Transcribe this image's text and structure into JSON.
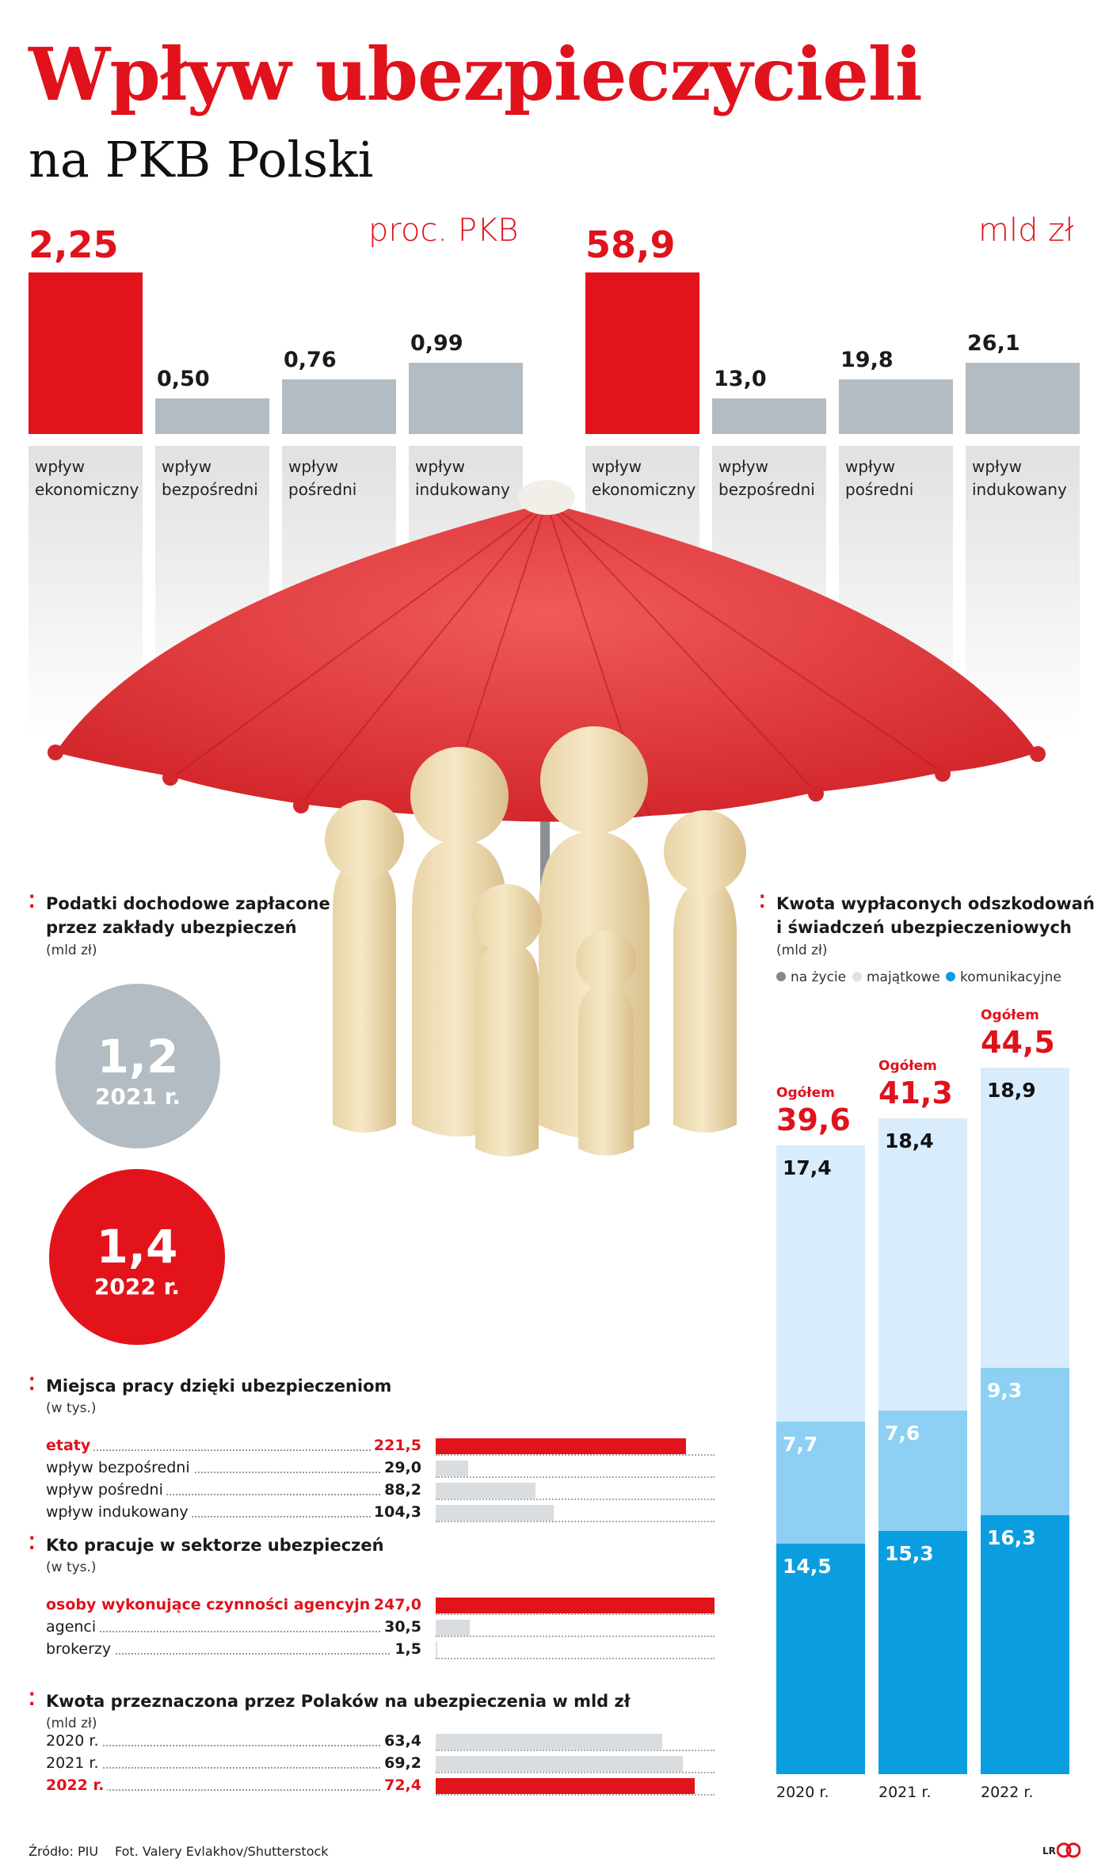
{
  "title": "Wpływ ubezpieczycieli",
  "subtitle": "na PKB Polski",
  "chart_data": [
    {
      "type": "bar",
      "title": "proc. PKB",
      "unit": "proc. PKB",
      "categories": [
        "wpływ\nekonomiczny",
        "wpływ\nbezpośredni",
        "wpływ\npośredni",
        "wpływ\nindukowany"
      ],
      "values": [
        2.25,
        0.5,
        0.76,
        0.99
      ],
      "labels": [
        "2,25",
        "0,50",
        "0,76",
        "0,99"
      ],
      "colors": [
        "#e3131b",
        "#b3bcc3",
        "#b3bcc3",
        "#b3bcc3"
      ]
    },
    {
      "type": "bar",
      "title": "mld zł",
      "unit": "mld zł",
      "categories": [
        "wpływ\nekonomiczny",
        "wpływ\nbezpośredni",
        "wpływ\npośredni",
        "wpływ\nindukowany"
      ],
      "values": [
        58.9,
        13.0,
        19.8,
        26.1
      ],
      "labels": [
        "58,9",
        "13,0",
        "19,8",
        "26,1"
      ],
      "colors": [
        "#e3131b",
        "#b3bcc3",
        "#b3bcc3",
        "#b3bcc3"
      ]
    },
    {
      "type": "bar",
      "title": "Podatki dochodowe zapłacone\nprzez zakłady ubezpieczeń",
      "subtitle": "(mld zł)",
      "items": [
        {
          "value": 1.2,
          "label": "1,2",
          "year": "2021 r.",
          "color": "#b3bcc3"
        },
        {
          "value": 1.4,
          "label": "1,4",
          "year": "2022 r.",
          "color": "#e3131b"
        }
      ]
    },
    {
      "type": "bar",
      "title": "Miejsca pracy dzięki ubezpieczeniom",
      "subtitle": "(w tys.)",
      "max": 247.0,
      "rows": [
        {
          "label": "etaty",
          "value": 221.5,
          "text": "221,5",
          "highlight": true
        },
        {
          "label": "wpływ bezpośredni",
          "value": 29.0,
          "text": "29,0",
          "highlight": false
        },
        {
          "label": "wpływ pośredni",
          "value": 88.2,
          "text": "88,2",
          "highlight": false
        },
        {
          "label": "wpływ indukowany",
          "value": 104.3,
          "text": "104,3",
          "highlight": false
        }
      ]
    },
    {
      "type": "bar",
      "title": "Kto pracuje w sektorze ubezpieczeń",
      "subtitle": "(w tys.)",
      "max": 247.0,
      "rows": [
        {
          "label": "osoby wykonujące czynności agencyjne",
          "value": 247.0,
          "text": "247,0",
          "highlight": true
        },
        {
          "label": "agenci",
          "value": 30.5,
          "text": "30,5",
          "highlight": false
        },
        {
          "label": "brokerzy",
          "value": 1.5,
          "text": "1,5",
          "highlight": false
        }
      ]
    },
    {
      "type": "bar",
      "title": "Kwota przeznaczona przez Polaków na ubezpieczenia w mld zł",
      "subtitle": "(mld zł)",
      "max": 78.0,
      "rows": [
        {
          "label": "2020 r.",
          "value": 63.4,
          "text": "63,4",
          "highlight": false
        },
        {
          "label": "2021 r.",
          "value": 69.2,
          "text": "69,2",
          "highlight": false
        },
        {
          "label": "2022 r.",
          "value": 72.4,
          "text": "72,4",
          "highlight": true
        }
      ]
    },
    {
      "type": "bar",
      "stacked": true,
      "title": "Kwota wypłaconych odszkodowań\ni świadczeń ubezpieczeniowych",
      "subtitle": "(mld zł)",
      "categories": [
        "2020 r.",
        "2021 r.",
        "2022 r."
      ],
      "total_label": "Ogółem",
      "totals": [
        39.6,
        41.3,
        44.5
      ],
      "totals_text": [
        "39,6",
        "41,3",
        "44,5"
      ],
      "series": [
        {
          "name": "komunikacyjne",
          "color": "#0a9ee0",
          "text_color": "#ffffff",
          "values": [
            14.5,
            15.3,
            16.3
          ],
          "labels": [
            "14,5",
            "15,3",
            "16,3"
          ]
        },
        {
          "name": "majątkowe",
          "color": "#8dd0f4",
          "text_color": "#ffffff",
          "values": [
            7.7,
            7.6,
            9.3
          ],
          "labels": [
            "7,7",
            "7,6",
            "9,3"
          ]
        },
        {
          "name": "na życie",
          "color": "#d9ecfb",
          "text_color": "#111111",
          "values": [
            17.4,
            18.4,
            18.9
          ],
          "labels": [
            "17,4",
            "18,4",
            "18,9"
          ]
        }
      ],
      "legend": [
        {
          "name": "na życie",
          "color": "#7f8c96"
        },
        {
          "name": "majątkowe",
          "color": "#dde2e6"
        },
        {
          "name": "komunikacyjne",
          "color": "#0a9ee0"
        }
      ]
    }
  ],
  "footer": {
    "source": "Źródło: PIU",
    "photo": "Fot. Valery Evlakhov/Shutterstock",
    "logo": "LR"
  }
}
